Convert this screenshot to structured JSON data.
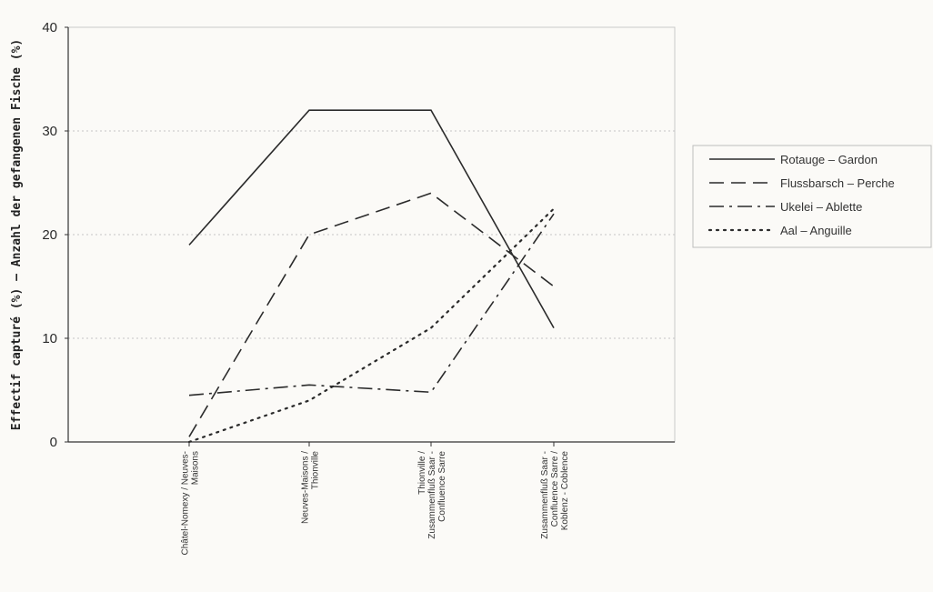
{
  "chart_data": {
    "type": "line",
    "title": "",
    "ylabel": "Effectif capturé (%) – Anzahl der gefangenen Fische (%)",
    "xlabel": "",
    "ylim": [
      0,
      40
    ],
    "yticks": [
      0,
      10,
      20,
      30,
      40
    ],
    "grid": "horizontal dotted",
    "legend_position": "right",
    "categories": [
      [
        "Châtel-Nomexy / Neuves-",
        "Maisons"
      ],
      [
        "Neuves-Maisons /",
        "Thionville"
      ],
      [
        "Thionville /",
        "Zusammenfluß Saar -",
        "Confluence Sarre"
      ],
      [
        "Zusammenfluß Saar -",
        "Confluence Sarre /",
        "Koblenz - Coblence"
      ]
    ],
    "series": [
      {
        "name": "Rotauge – Gardon",
        "values": [
          19,
          32,
          32,
          11
        ],
        "dash": "solid"
      },
      {
        "name": "Flussbarsch – Perche",
        "values": [
          0.5,
          20,
          24,
          15
        ],
        "dash": "dashed"
      },
      {
        "name": "Ukelei – Ablette",
        "values": [
          4.5,
          5.5,
          4.8,
          22
        ],
        "dash": "dashdot"
      },
      {
        "name": "Aal – Anguille",
        "values": [
          0,
          4,
          11,
          22.5
        ],
        "dash": "dotted"
      }
    ]
  }
}
